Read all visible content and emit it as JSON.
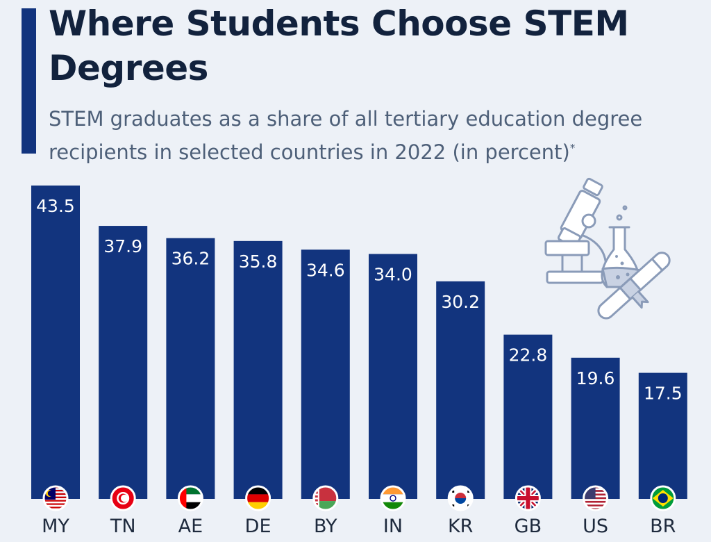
{
  "title": "Where Students Choose STEM Degrees",
  "subtitle": "STEM graduates as a share of all tertiary education degree recipients in selected countries in 2022 (in percent)",
  "subtitle_note_marker": "*",
  "colors": {
    "bar": "#12347e",
    "accent": "#12347e",
    "title": "#12223d",
    "subtitle": "#4d5f78",
    "background": "#edf1f7",
    "value_label": "#ffffff"
  },
  "illustration": {
    "icon": "microscope-flask-diploma-icon"
  },
  "chart_data": {
    "type": "bar",
    "title": "Where Students Choose STEM Degrees",
    "xlabel": "",
    "ylabel": "",
    "ylim": [
      0,
      45
    ],
    "grid": false,
    "legend": "none",
    "categories": [
      "MY",
      "TN",
      "AE",
      "DE",
      "BY",
      "IN",
      "KR",
      "GB",
      "US",
      "BR"
    ],
    "values": [
      43.5,
      37.9,
      36.2,
      35.8,
      34.6,
      34.0,
      30.2,
      22.8,
      19.6,
      17.5
    ],
    "value_labels": [
      "43.5",
      "37.9",
      "36.2",
      "35.8",
      "34.6",
      "34.0",
      "30.2",
      "22.8",
      "19.6",
      "17.5"
    ],
    "flags": [
      "flag-malaysia-icon",
      "flag-tunisia-icon",
      "flag-uae-icon",
      "flag-germany-icon",
      "flag-belarus-icon",
      "flag-india-icon",
      "flag-south-korea-icon",
      "flag-uk-icon",
      "flag-usa-icon",
      "flag-brazil-icon"
    ]
  }
}
